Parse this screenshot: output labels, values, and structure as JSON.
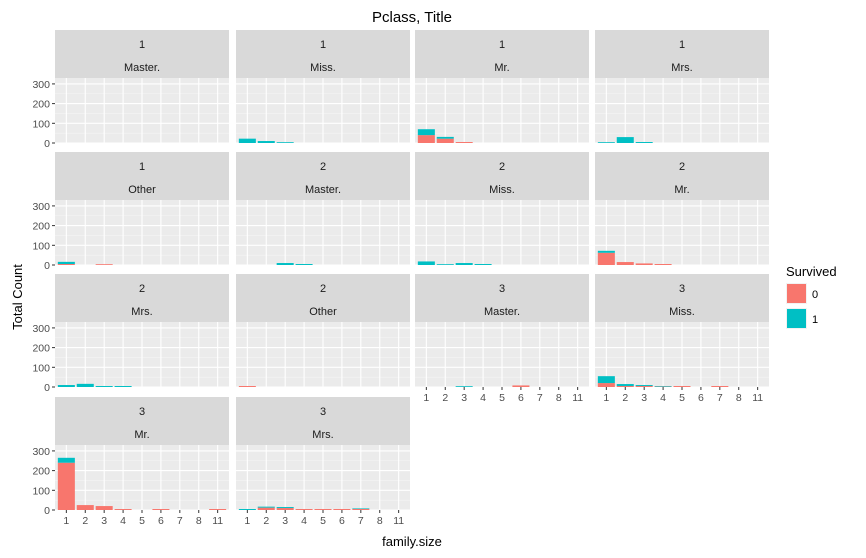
{
  "chart_data": {
    "type": "bar",
    "title": "Pclass, Title",
    "xlabel": "family.size",
    "ylabel": "Total Count",
    "categories": [
      "1",
      "2",
      "3",
      "4",
      "5",
      "6",
      "7",
      "8",
      "11"
    ],
    "yticks": [
      0,
      100,
      200,
      300
    ],
    "ylim": [
      0,
      330
    ],
    "grid": true,
    "stacked": true,
    "legend": {
      "title": "Survived",
      "position": "right",
      "items": [
        {
          "label": "0",
          "color": "#F8766D"
        },
        {
          "label": "1",
          "color": "#00BFC4"
        }
      ]
    },
    "facets": [
      {
        "pclass": "1",
        "title": "Master.",
        "series": {
          "0": [
            0,
            0,
            0,
            0,
            0,
            0,
            0,
            0,
            0
          ],
          "1": [
            0,
            0,
            0,
            0,
            0,
            0,
            0,
            0,
            0
          ]
        }
      },
      {
        "pclass": "1",
        "title": "Miss.",
        "series": {
          "0": [
            0,
            0,
            0,
            0,
            0,
            0,
            0,
            0,
            0
          ],
          "1": [
            22,
            10,
            4,
            0,
            0,
            0,
            0,
            0,
            0
          ]
        }
      },
      {
        "pclass": "1",
        "title": "Mr.",
        "series": {
          "0": [
            40,
            22,
            5,
            0,
            0,
            0,
            0,
            0,
            0
          ],
          "1": [
            30,
            9,
            0,
            0,
            0,
            0,
            0,
            0,
            0
          ]
        }
      },
      {
        "pclass": "1",
        "title": "Mrs.",
        "series": {
          "0": [
            0,
            0,
            0,
            0,
            0,
            0,
            0,
            0,
            0
          ],
          "1": [
            4,
            30,
            5,
            0,
            0,
            0,
            0,
            0,
            0
          ]
        }
      },
      {
        "pclass": "1",
        "title": "Other",
        "series": {
          "0": [
            5,
            0,
            4,
            0,
            0,
            0,
            0,
            0,
            0
          ],
          "1": [
            11,
            0,
            0,
            0,
            0,
            0,
            0,
            0,
            0
          ]
        }
      },
      {
        "pclass": "2",
        "title": "Master.",
        "series": {
          "0": [
            0,
            0,
            0,
            0,
            0,
            0,
            0,
            0,
            0
          ],
          "1": [
            0,
            0,
            10,
            5,
            0,
            0,
            0,
            0,
            0
          ]
        }
      },
      {
        "pclass": "2",
        "title": "Miss.",
        "series": {
          "0": [
            0,
            0,
            0,
            0,
            0,
            0,
            0,
            0,
            0
          ],
          "1": [
            18,
            4,
            10,
            5,
            0,
            0,
            0,
            0,
            0
          ]
        }
      },
      {
        "pclass": "2",
        "title": "Mr.",
        "series": {
          "0": [
            62,
            15,
            8,
            5,
            0,
            0,
            0,
            0,
            0
          ],
          "1": [
            10,
            0,
            0,
            0,
            0,
            0,
            0,
            0,
            0
          ]
        }
      },
      {
        "pclass": "2",
        "title": "Mrs.",
        "series": {
          "0": [
            0,
            0,
            0,
            0,
            0,
            0,
            0,
            0,
            0
          ],
          "1": [
            10,
            16,
            5,
            5,
            0,
            0,
            0,
            0,
            0
          ]
        }
      },
      {
        "pclass": "2",
        "title": "Other",
        "series": {
          "0": [
            5,
            0,
            0,
            0,
            0,
            0,
            0,
            0,
            0
          ],
          "1": [
            0,
            0,
            0,
            0,
            0,
            0,
            0,
            0,
            0
          ]
        }
      },
      {
        "pclass": "3",
        "title": "Master.",
        "series": {
          "0": [
            0,
            0,
            0,
            0,
            0,
            8,
            0,
            0,
            0
          ],
          "1": [
            0,
            0,
            4,
            0,
            0,
            0,
            0,
            0,
            0
          ]
        }
      },
      {
        "pclass": "3",
        "title": "Miss.",
        "series": {
          "0": [
            20,
            5,
            5,
            2,
            5,
            0,
            5,
            0,
            0
          ],
          "1": [
            35,
            10,
            5,
            3,
            0,
            0,
            0,
            0,
            0
          ]
        }
      },
      {
        "pclass": "3",
        "title": "Mr.",
        "series": {
          "0": [
            240,
            25,
            20,
            5,
            0,
            5,
            0,
            0,
            5
          ],
          "1": [
            25,
            0,
            0,
            0,
            0,
            0,
            0,
            0,
            0
          ]
        }
      },
      {
        "pclass": "3",
        "title": "Mrs.",
        "series": {
          "0": [
            0,
            12,
            10,
            5,
            5,
            5,
            5,
            0,
            0
          ],
          "1": [
            5,
            5,
            5,
            0,
            0,
            0,
            3,
            0,
            0
          ]
        }
      }
    ]
  }
}
